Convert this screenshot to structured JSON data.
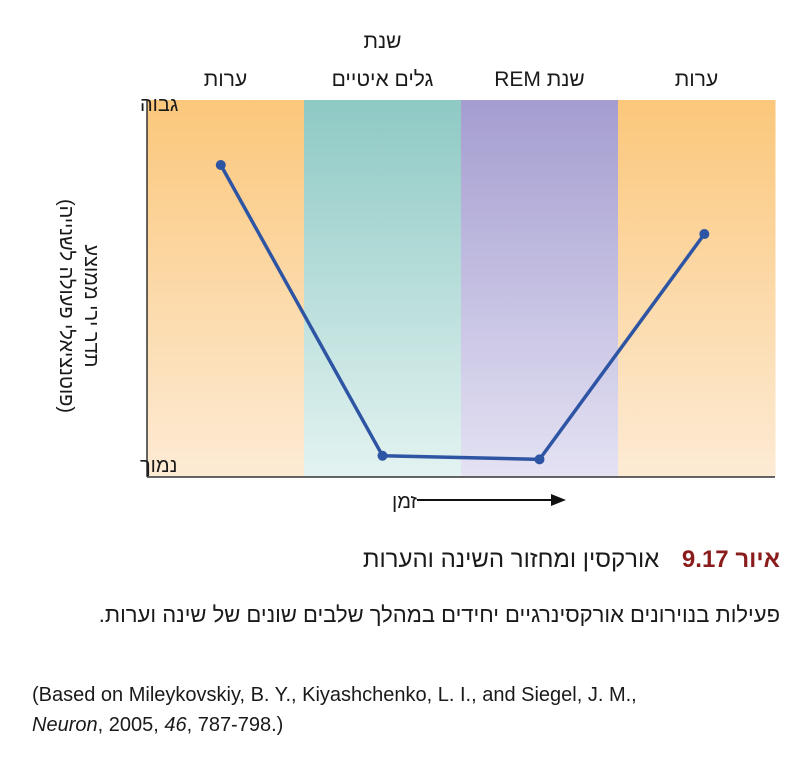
{
  "chart_data": {
    "type": "line",
    "title": "",
    "xlabel": "זמן",
    "ylabel": "תדר ירי ממוצע",
    "ylabel_sub": "(פוטנציאלי פעולה לשנייה)",
    "y_tick_labels": {
      "high": "גבוה",
      "low": "נמוך"
    },
    "ylim": [
      0,
      1
    ],
    "grid": false,
    "stages": [
      {
        "label_lines": [
          "ערות"
        ],
        "color_top": "#fbc77b",
        "color_bottom": "#fdebd5"
      },
      {
        "label_lines": [
          "שנת",
          "גלים איטיים"
        ],
        "color_top": "#8ec9c4",
        "color_bottom": "#e3f3f1"
      },
      {
        "label_lines": [
          "שנת REM"
        ],
        "color_top": "#a49dd0",
        "color_bottom": "#e4e2f3"
      },
      {
        "label_lines": [
          "ערות"
        ],
        "color_top": "#fbc77b",
        "color_bottom": "#fdebd5"
      }
    ],
    "x": [
      0.47,
      1.5,
      2.5,
      3.55
    ],
    "values": [
      0.82,
      0.02,
      0.01,
      0.63
    ],
    "series_color": "#2e55a3"
  },
  "caption": {
    "figure_label": "איור",
    "figure_number": "9.17",
    "figure_title": "אורקסין ומחזור השינה והערות",
    "description": "פעילות בנוירונים אורקסינרגיים יחידים במהלך שלבים שונים של שינה וערות.",
    "source_prefix": "(Based on Mileykovskiy, B. Y., Kiyashchenko, L. I., and Siegel, J. M.,",
    "source_journal": "Neuron",
    "source_year": ", 2005, ",
    "source_volume": "46",
    "source_pages": ", 787-798.)"
  }
}
